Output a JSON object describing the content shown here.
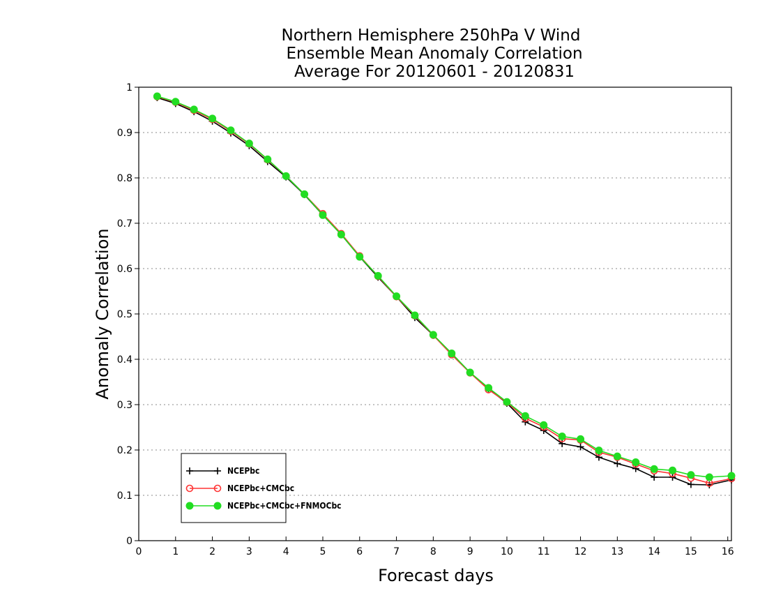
{
  "chart_data": {
    "type": "line",
    "title": [
      "Northern Hemisphere 250hPa V Wind",
      "Ensemble Mean Anomaly Correlation",
      "Average For 20120601 - 20120831"
    ],
    "xlabel": "Forecast days",
    "ylabel": "Anomaly Correlation",
    "xlim": [
      0,
      16.1
    ],
    "ylim": [
      0,
      1
    ],
    "xticks": [
      "0",
      "1",
      "2",
      "3",
      "4",
      "5",
      "6",
      "7",
      "8",
      "9",
      "10",
      "11",
      "12",
      "13",
      "14",
      "15",
      "16"
    ],
    "yticks": [
      "0",
      "0.1",
      "0.2",
      "0.3",
      "0.4",
      "0.5",
      "0.6",
      "0.7",
      "0.8",
      "0.9",
      "1"
    ],
    "grid": "horizontal dotted",
    "legend_position": "bottom-left",
    "x": [
      0.5,
      1,
      1.5,
      2,
      2.5,
      3,
      3.5,
      4,
      4.5,
      5,
      5.5,
      6,
      6.5,
      7,
      7.5,
      8,
      8.5,
      9,
      9.5,
      10,
      10.5,
      11,
      11.5,
      12,
      12.5,
      13,
      13.5,
      14,
      14.5,
      15,
      15.5,
      16.1
    ],
    "series": [
      {
        "name": "NCEPbc",
        "color": "#000000",
        "marker": "plus",
        "values": [
          0.977,
          0.964,
          0.946,
          0.925,
          0.899,
          0.871,
          0.836,
          0.802,
          0.763,
          0.718,
          0.675,
          0.626,
          0.581,
          0.538,
          0.492,
          0.453,
          0.413,
          0.37,
          0.335,
          0.303,
          0.262,
          0.243,
          0.214,
          0.207,
          0.184,
          0.17,
          0.159,
          0.14,
          0.14,
          0.124,
          0.123,
          0.134
        ]
      },
      {
        "name": "NCEPbc+CMCbc",
        "color": "#ff3333",
        "marker": "open-circle",
        "values": [
          0.979,
          0.967,
          0.949,
          0.929,
          0.903,
          0.875,
          0.84,
          0.804,
          0.764,
          0.721,
          0.677,
          0.628,
          0.583,
          0.538,
          0.496,
          0.453,
          0.41,
          0.37,
          0.333,
          0.305,
          0.27,
          0.251,
          0.225,
          0.222,
          0.195,
          0.184,
          0.169,
          0.154,
          0.148,
          0.138,
          0.127,
          0.137
        ]
      },
      {
        "name": "NCEPbc+CMCbc+FNMOCbc",
        "color": "#22dd22",
        "marker": "filled-circle",
        "values": [
          0.98,
          0.968,
          0.951,
          0.931,
          0.905,
          0.876,
          0.841,
          0.804,
          0.764,
          0.718,
          0.675,
          0.626,
          0.584,
          0.539,
          0.497,
          0.454,
          0.413,
          0.371,
          0.337,
          0.306,
          0.275,
          0.255,
          0.23,
          0.224,
          0.199,
          0.186,
          0.173,
          0.158,
          0.155,
          0.145,
          0.14,
          0.143
        ]
      }
    ]
  }
}
